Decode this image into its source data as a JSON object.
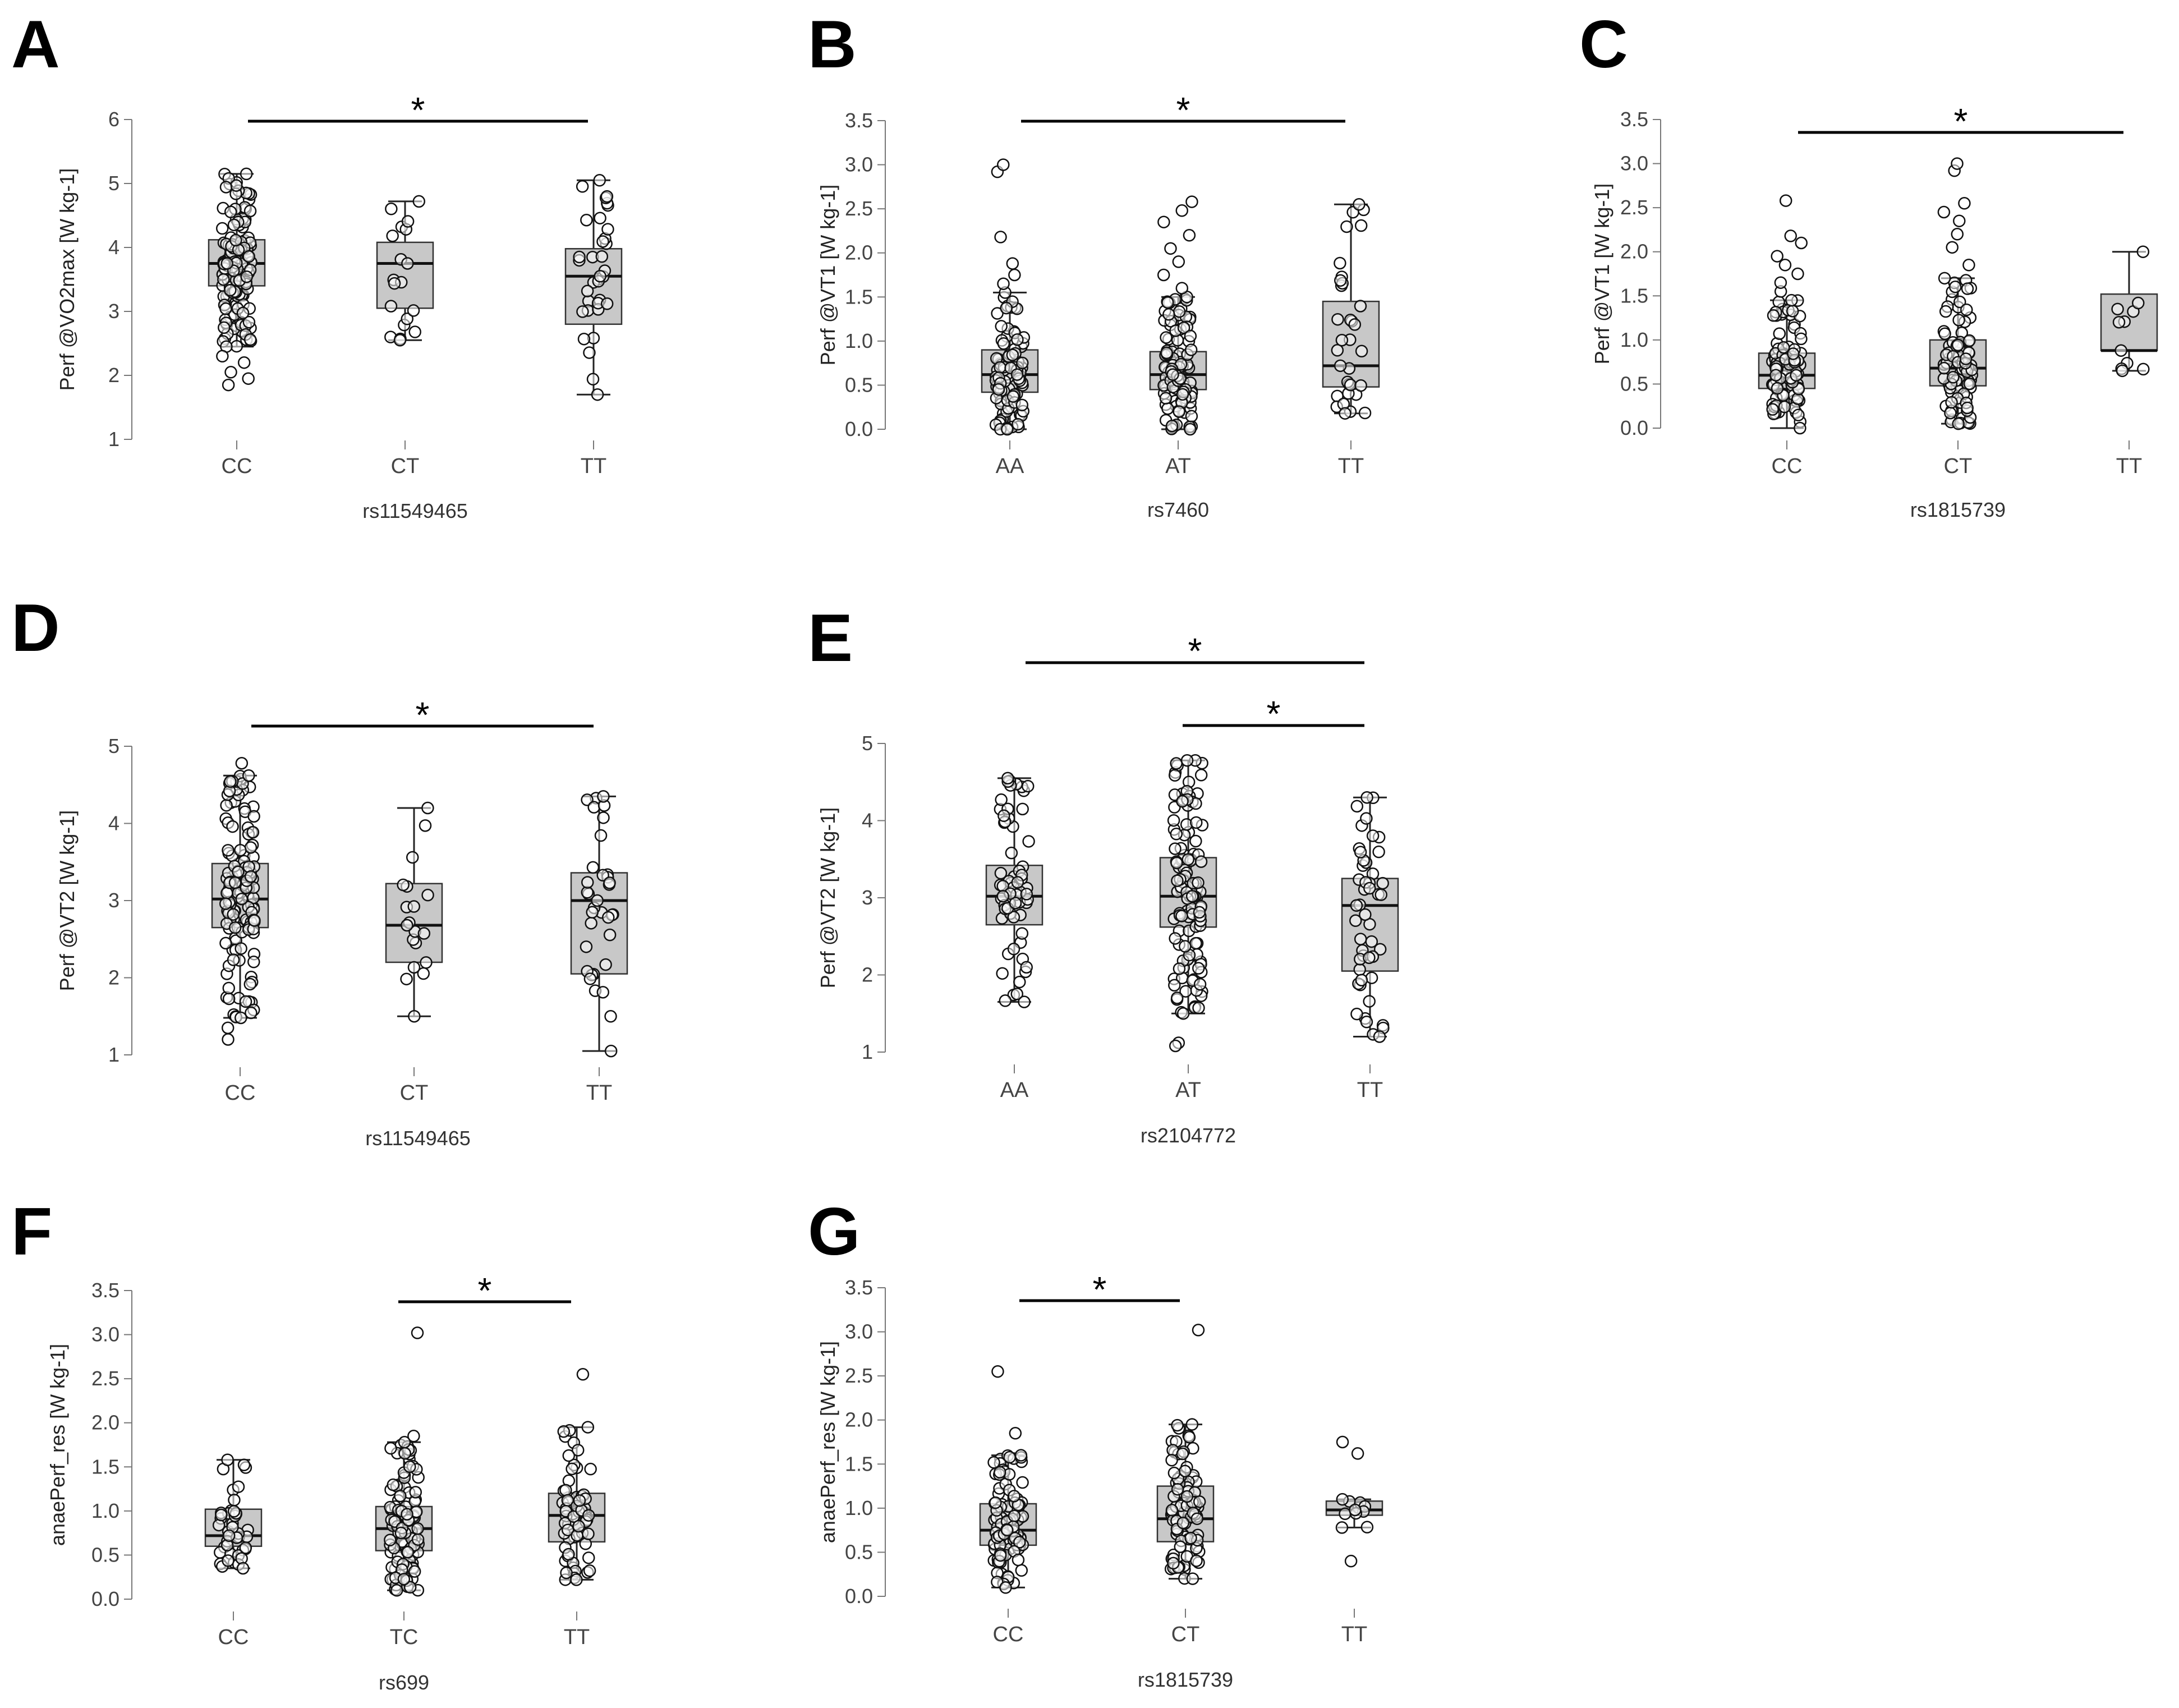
{
  "chart_data": [
    {
      "panel": "A",
      "type": "box",
      "ylabel": "Perf @VO2max [W kg-1]",
      "xlabel": "rs11549465",
      "ylim": [
        1,
        6
      ],
      "yticks": [
        1,
        2,
        3,
        4,
        5,
        6
      ],
      "ytick_labels": [
        "1",
        "2",
        "3",
        "4",
        "5",
        "6"
      ],
      "categories": [
        "CC",
        "CT",
        "TT"
      ],
      "boxes": [
        {
          "label": "CC",
          "min": 2.45,
          "q1": 3.4,
          "median": 3.75,
          "q3": 4.12,
          "max": 5.15,
          "n": 150,
          "outliers": [
            2.3,
            2.2,
            2.05,
            1.95,
            1.85
          ]
        },
        {
          "label": "CT",
          "min": 2.55,
          "q1": 3.05,
          "median": 3.75,
          "q3": 4.08,
          "max": 4.72,
          "n": 16,
          "outliers": []
        },
        {
          "label": "TT",
          "min": 1.7,
          "q1": 2.8,
          "median": 3.55,
          "q3": 3.98,
          "max": 5.05,
          "n": 32,
          "outliers": []
        }
      ],
      "significance": [
        {
          "from": "CC",
          "to": "TT",
          "label": "*"
        }
      ]
    },
    {
      "panel": "B",
      "type": "box",
      "ylabel": "Perf @VT1 [W kg-1]",
      "xlabel": "rs7460",
      "ylim": [
        0,
        3.5
      ],
      "yticks": [
        0,
        0.5,
        1,
        1.5,
        2,
        2.5,
        3,
        3.5
      ],
      "ytick_labels": [
        "0.0",
        "0.5",
        "1.0",
        "1.5",
        "2.0",
        "2.5",
        "3.0",
        "3.5"
      ],
      "categories": [
        "AA",
        "AT",
        "TT"
      ],
      "boxes": [
        {
          "label": "AA",
          "min": 0.0,
          "q1": 0.42,
          "median": 0.62,
          "q3": 0.9,
          "max": 1.55,
          "n": 90,
          "outliers": [
            1.65,
            1.75,
            1.88,
            2.18,
            2.92,
            3.0
          ]
        },
        {
          "label": "AT",
          "min": 0.0,
          "q1": 0.45,
          "median": 0.62,
          "q3": 0.88,
          "max": 1.5,
          "n": 100,
          "outliers": [
            1.6,
            1.75,
            1.9,
            2.05,
            2.2,
            2.35,
            2.48,
            2.58
          ]
        },
        {
          "label": "TT",
          "min": 0.18,
          "q1": 0.48,
          "median": 0.72,
          "q3": 1.45,
          "max": 2.55,
          "n": 30,
          "outliers": []
        }
      ],
      "significance": [
        {
          "from": "AA",
          "to": "TT",
          "label": "*"
        }
      ]
    },
    {
      "panel": "C",
      "type": "box",
      "ylabel": "Perf @VT1 [W kg-1]",
      "xlabel": "rs1815739",
      "ylim": [
        0,
        3.5
      ],
      "yticks": [
        0,
        0.5,
        1,
        1.5,
        2,
        2.5,
        3,
        3.5
      ],
      "ytick_labels": [
        "0.0",
        "0.5",
        "1.0",
        "1.5",
        "2.0",
        "2.5",
        "3.0",
        "3.5"
      ],
      "categories": [
        "CC",
        "CT",
        "TT"
      ],
      "boxes": [
        {
          "label": "CC",
          "min": 0.0,
          "q1": 0.45,
          "median": 0.6,
          "q3": 0.85,
          "max": 1.45,
          "n": 100,
          "outliers": [
            1.55,
            1.65,
            1.75,
            1.85,
            1.95,
            2.1,
            2.18,
            2.58
          ]
        },
        {
          "label": "CT",
          "min": 0.05,
          "q1": 0.48,
          "median": 0.68,
          "q3": 1.0,
          "max": 1.7,
          "n": 90,
          "outliers": [
            1.85,
            2.05,
            2.2,
            2.35,
            2.45,
            2.55,
            2.92,
            3.0
          ]
        },
        {
          "label": "TT",
          "min": 0.65,
          "q1": 0.88,
          "median": 0.88,
          "q3": 1.52,
          "max": 2.0,
          "n": 8,
          "outliers": []
        }
      ],
      "significance": [
        {
          "from": "CC",
          "to": "TT",
          "label": "*"
        }
      ]
    },
    {
      "panel": "D",
      "type": "box",
      "ylabel": "Perf @VT2 [W kg-1]",
      "xlabel": "rs11549465",
      "ylim": [
        1,
        5
      ],
      "yticks": [
        1,
        2,
        3,
        4,
        5
      ],
      "ytick_labels": [
        "1",
        "2",
        "3",
        "4",
        "5"
      ],
      "categories": [
        "CC",
        "CT",
        "TT"
      ],
      "boxes": [
        {
          "label": "CC",
          "min": 1.48,
          "q1": 2.65,
          "median": 3.02,
          "q3": 3.48,
          "max": 4.62,
          "n": 150,
          "outliers": [
            1.35,
            1.2,
            4.78
          ]
        },
        {
          "label": "CT",
          "min": 1.5,
          "q1": 2.2,
          "median": 2.68,
          "q3": 3.22,
          "max": 4.2,
          "n": 16,
          "outliers": []
        },
        {
          "label": "TT",
          "min": 1.05,
          "q1": 2.05,
          "median": 3.0,
          "q3": 3.36,
          "max": 4.35,
          "n": 32,
          "outliers": []
        }
      ],
      "significance": [
        {
          "from": "CC",
          "to": "TT",
          "label": "*"
        }
      ]
    },
    {
      "panel": "E",
      "type": "box",
      "ylabel": "Perf @VT2 [W kg-1]",
      "xlabel": "rs2104772",
      "ylim": [
        1,
        5
      ],
      "yticks": [
        1,
        2,
        3,
        4,
        5
      ],
      "ytick_labels": [
        "1",
        "2",
        "3",
        "4",
        "5"
      ],
      "categories": [
        "AA",
        "AT",
        "TT"
      ],
      "boxes": [
        {
          "label": "AA",
          "min": 1.65,
          "q1": 2.65,
          "median": 3.02,
          "q3": 3.42,
          "max": 4.55,
          "n": 60,
          "outliers": []
        },
        {
          "label": "AT",
          "min": 1.5,
          "q1": 2.62,
          "median": 3.02,
          "q3": 3.52,
          "max": 4.78,
          "n": 120,
          "outliers": [
            1.12,
            1.08
          ]
        },
        {
          "label": "TT",
          "min": 1.2,
          "q1": 2.05,
          "median": 2.9,
          "q3": 3.25,
          "max": 4.3,
          "n": 45,
          "outliers": []
        }
      ],
      "significance": [
        {
          "from": "AA",
          "to": "TT",
          "label": "*",
          "level": 1
        },
        {
          "from": "AT",
          "to": "TT",
          "label": "*",
          "level": 2
        }
      ]
    },
    {
      "panel": "F",
      "type": "box",
      "ylabel": "anaePerf_res [W kg-1]",
      "xlabel": "rs699",
      "ylim": [
        0,
        3.5
      ],
      "yticks": [
        0,
        0.5,
        1,
        1.5,
        2,
        2.5,
        3,
        3.5
      ],
      "ytick_labels": [
        "0.0",
        "0.5",
        "1.0",
        "1.5",
        "2.0",
        "2.5",
        "3.0",
        "3.5"
      ],
      "categories": [
        "CC",
        "TC",
        "TT"
      ],
      "boxes": [
        {
          "label": "CC",
          "min": 0.35,
          "q1": 0.6,
          "median": 0.72,
          "q3": 1.02,
          "max": 1.58,
          "n": 40,
          "outliers": []
        },
        {
          "label": "TC",
          "min": 0.1,
          "q1": 0.55,
          "median": 0.8,
          "q3": 1.05,
          "max": 1.78,
          "n": 110,
          "outliers": [
            1.85,
            3.02
          ]
        },
        {
          "label": "TT",
          "min": 0.22,
          "q1": 0.65,
          "median": 0.95,
          "q3": 1.2,
          "max": 1.95,
          "n": 65,
          "outliers": [
            2.55
          ]
        }
      ],
      "significance": [
        {
          "from": "TC",
          "to": "TT",
          "label": "*"
        }
      ]
    },
    {
      "panel": "G",
      "type": "box",
      "ylabel": "anaePerf_res [W kg-1]",
      "xlabel": "rs1815739",
      "ylim": [
        0,
        3.5
      ],
      "yticks": [
        0,
        0.5,
        1,
        1.5,
        2,
        2.5,
        3,
        3.5
      ],
      "ytick_labels": [
        "0.0",
        "0.5",
        "1.0",
        "1.5",
        "2.0",
        "2.5",
        "3.0",
        "3.5"
      ],
      "categories": [
        "CC",
        "CT",
        "TT"
      ],
      "boxes": [
        {
          "label": "CC",
          "min": 0.1,
          "q1": 0.58,
          "median": 0.75,
          "q3": 1.05,
          "max": 1.6,
          "n": 100,
          "outliers": [
            1.85,
            2.55
          ]
        },
        {
          "label": "CT",
          "min": 0.2,
          "q1": 0.62,
          "median": 0.88,
          "q3": 1.25,
          "max": 1.95,
          "n": 90,
          "outliers": [
            3.02
          ]
        },
        {
          "label": "TT",
          "min": 0.78,
          "q1": 0.92,
          "median": 0.98,
          "q3": 1.08,
          "max": 1.1,
          "n": 8,
          "outliers": [
            1.62,
            1.75,
            0.4
          ]
        }
      ],
      "significance": [
        {
          "from": "CC",
          "to": "CT",
          "label": "*"
        }
      ]
    }
  ]
}
